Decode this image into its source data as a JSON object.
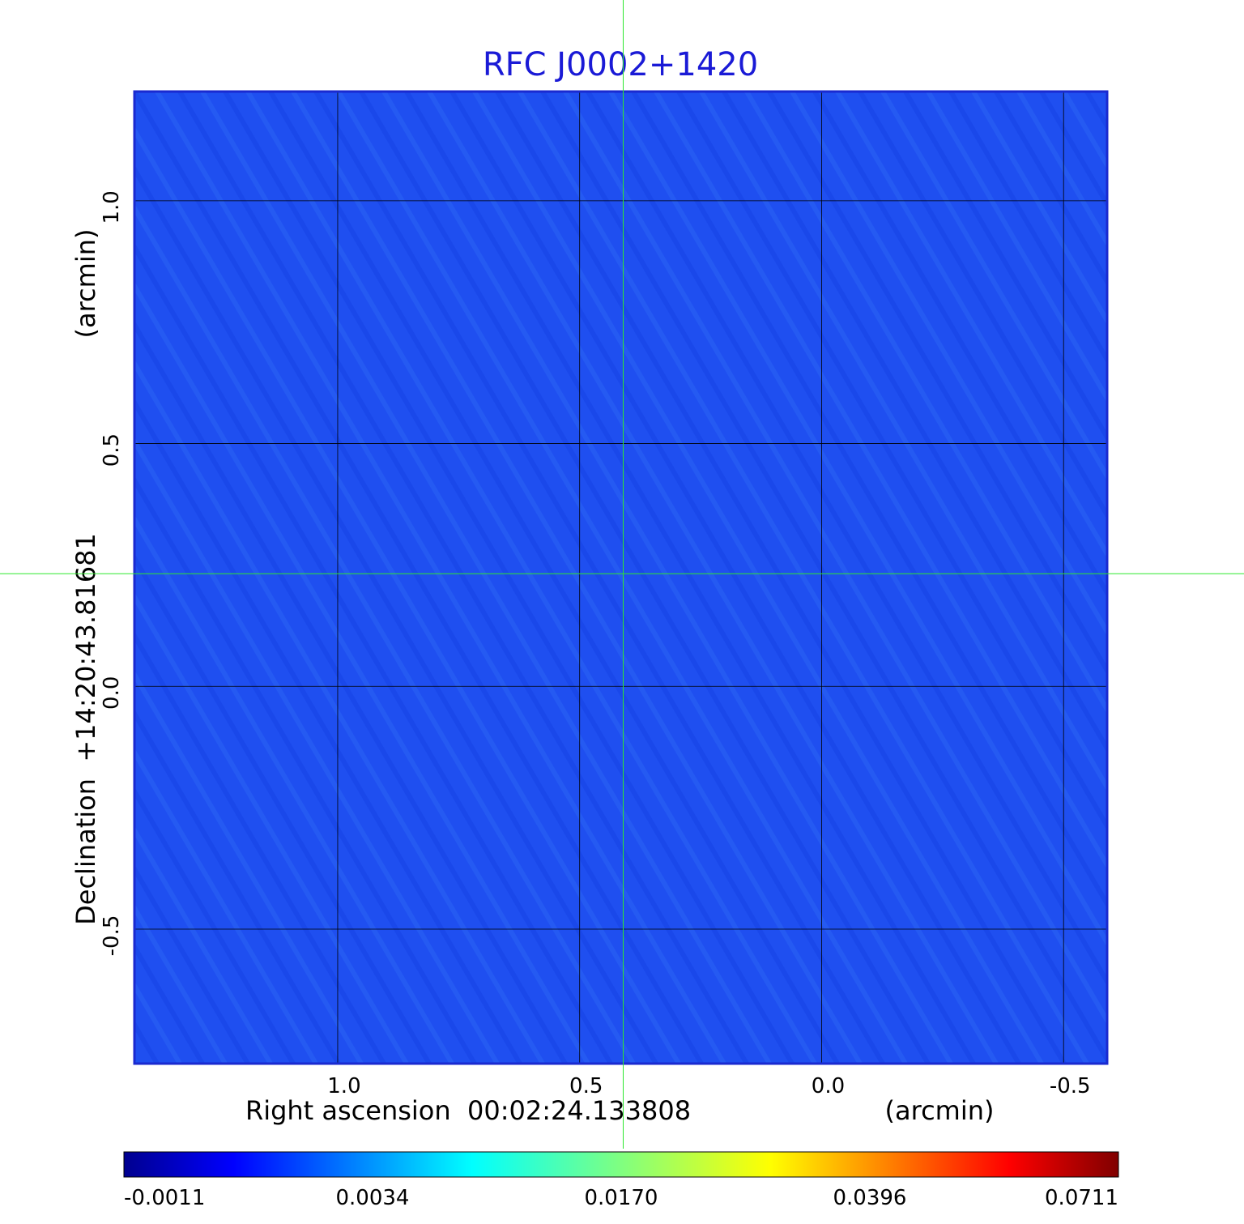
{
  "chart_data": {
    "type": "heatmap",
    "title": "RFC J0002+1420",
    "xlabel": "Right ascension  00:02:24.133808",
    "xunit": "(arcmin)",
    "ylabel": "Declination  +14:20:43.81681",
    "yunit": "(arcmin)",
    "x_ticks": [
      "1.0",
      "0.5",
      "0.0",
      "-0.5"
    ],
    "y_ticks": [
      "1.0",
      "0.5",
      "0.0",
      "-0.5"
    ],
    "xlim": [
      1.42,
      -0.59
    ],
    "ylim": [
      -0.777,
      1.225
    ],
    "x_reversed": true,
    "grid": true,
    "crosshair": {
      "x": 0.41,
      "y": 0.232,
      "color": "#2ee82e"
    },
    "source_peak": {
      "x": 0.41,
      "y": 0.232,
      "value": 0.0711
    },
    "colormap": "jet",
    "colorbar": {
      "ticks": [
        "-0.0011",
        "0.0034",
        "0.0170",
        "0.0396",
        "0.0711"
      ],
      "min": -0.0011,
      "max": 0.0711
    },
    "background_color": "#1f4ff0"
  }
}
